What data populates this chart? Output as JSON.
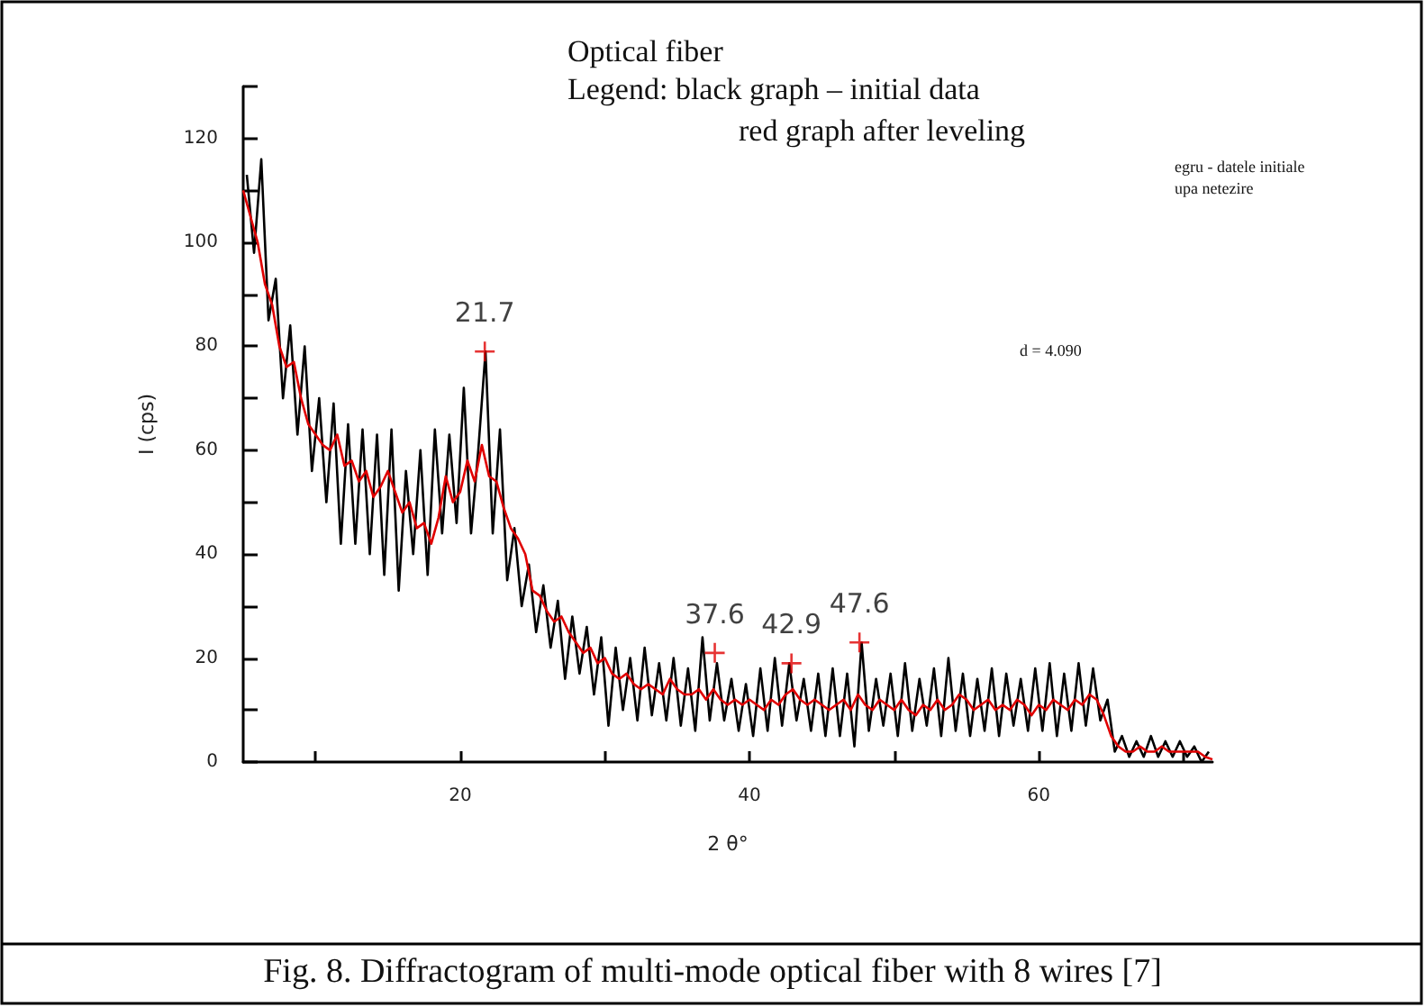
{
  "chart_data": {
    "type": "line",
    "title": "Optical fiber",
    "subtitle": "Legend: black graph – initial data",
    "xlabel": "2 θ°",
    "ylabel": "I (cps)",
    "xlim": [
      5,
      72
    ],
    "xticks": [
      {
        "value": 10,
        "label": null
      },
      20,
      {
        "value": 30,
        "label": null
      },
      40,
      {
        "value": 50,
        "label": null
      },
      60,
      {
        "value": 70,
        "label": null
      }
    ],
    "ylim": [
      0,
      130
    ],
    "yticks": [
      0,
      {
        "value": 10,
        "label": null
      },
      20,
      {
        "value": 30,
        "label": null
      },
      40,
      {
        "value": 50,
        "label": null
      },
      60,
      {
        "value": 70,
        "label": null
      },
      80,
      {
        "value": 90,
        "label": null
      },
      100,
      {
        "value": 110,
        "label": null
      },
      120,
      {
        "value": 130,
        "label": null
      }
    ],
    "grid": false,
    "marker": "none",
    "line_style": "solid",
    "series": [
      {
        "color": "#000000",
        "x": [
          5.25,
          5.75,
          6.25,
          6.75,
          7.25,
          7.75,
          8.25,
          8.75,
          9.25,
          9.75,
          10.25,
          10.75,
          11.25,
          11.75,
          12.25,
          12.75,
          13.25,
          13.75,
          14.25,
          14.75,
          15.25,
          15.75,
          16.25,
          16.75,
          17.25,
          17.75,
          18.25,
          18.75,
          19.25,
          19.75,
          20.25,
          20.75,
          21.25,
          21.75,
          22.25,
          22.75,
          23.25,
          23.75,
          24.25,
          24.75,
          25.25,
          25.75,
          26.25,
          26.75,
          27.25,
          27.75,
          28.25,
          28.75,
          29.25,
          29.75,
          30.25,
          30.75,
          31.25,
          31.75,
          32.25,
          32.75,
          33.25,
          33.75,
          34.25,
          34.75,
          35.25,
          35.75,
          36.25,
          36.75,
          37.25,
          37.75,
          38.25,
          38.75,
          39.25,
          39.75,
          40.25,
          40.75,
          41.25,
          41.75,
          42.25,
          42.75,
          43.25,
          43.75,
          44.25,
          44.75,
          45.25,
          45.75,
          46.25,
          46.75,
          47.25,
          47.75,
          48.25,
          48.75,
          49.25,
          49.75,
          50.25,
          50.75,
          51.25,
          51.75,
          52.25,
          52.75,
          53.25,
          53.75,
          54.25,
          54.75,
          55.25,
          55.75,
          56.25,
          56.75,
          57.25,
          57.75,
          58.25,
          58.75,
          59.25,
          59.75,
          60.25,
          60.75,
          61.25,
          61.75,
          62.25,
          62.75,
          63.25,
          63.75,
          64.25,
          64.75,
          65.25,
          65.75,
          66.25,
          66.75,
          67.25,
          67.75,
          68.25,
          68.75,
          69.25,
          69.75,
          70.25,
          70.75,
          71.25,
          71.75
        ],
        "values": [
          113,
          98,
          116,
          85,
          93,
          70,
          84,
          63,
          80,
          56,
          70,
          50,
          69,
          42,
          65,
          42,
          64,
          40,
          63,
          36,
          64,
          33,
          56,
          40,
          60,
          36,
          64,
          44,
          63,
          46,
          72,
          44,
          60,
          79,
          44,
          64,
          35,
          45,
          30,
          38,
          25,
          34,
          22,
          31,
          16,
          28,
          17,
          26,
          13,
          24,
          7,
          22,
          10,
          20,
          8,
          22,
          9,
          19,
          8,
          20,
          7,
          18,
          6,
          24,
          8,
          19,
          8,
          16,
          6,
          15,
          5,
          18,
          6,
          20,
          7,
          19,
          8,
          16,
          6,
          17,
          5,
          18,
          5,
          17,
          3,
          23,
          6,
          16,
          7,
          17,
          5,
          19,
          6,
          16,
          7,
          18,
          5,
          20,
          6,
          17,
          5,
          16,
          6,
          18,
          5,
          17,
          7,
          16,
          6,
          18,
          6,
          19,
          5,
          17,
          6,
          19,
          7,
          18,
          8,
          12,
          2,
          5,
          1,
          4,
          1,
          5,
          1,
          4,
          1,
          4,
          1,
          3,
          0,
          2
        ]
      },
      {
        "color": "#e00000",
        "x": [
          5,
          5.5,
          6,
          6.5,
          7,
          7.5,
          8,
          8.5,
          9,
          9.5,
          10,
          10.5,
          11,
          11.5,
          12,
          12.5,
          13,
          13.5,
          14,
          14.5,
          15,
          15.5,
          16,
          16.5,
          17,
          17.5,
          18,
          18.5,
          19,
          19.5,
          20,
          20.5,
          21,
          21.5,
          22,
          22.5,
          23,
          23.5,
          24,
          24.5,
          25,
          25.5,
          26,
          26.5,
          27,
          27.5,
          28,
          28.5,
          29,
          29.5,
          30,
          30.5,
          31,
          31.5,
          32,
          32.5,
          33,
          33.5,
          34,
          34.5,
          35,
          35.5,
          36,
          36.5,
          37,
          37.5,
          38,
          38.5,
          39,
          39.5,
          40,
          40.5,
          41,
          41.5,
          42,
          42.5,
          43,
          43.5,
          44,
          44.5,
          45,
          45.5,
          46,
          46.5,
          47,
          47.5,
          48,
          48.5,
          49,
          49.5,
          50,
          50.5,
          51,
          51.5,
          52,
          52.5,
          53,
          53.5,
          54,
          54.5,
          55,
          55.5,
          56,
          56.5,
          57,
          57.5,
          58,
          58.5,
          59,
          59.5,
          60,
          60.5,
          61,
          61.5,
          62,
          62.5,
          63,
          63.5,
          64,
          64.5,
          65,
          65.5,
          66,
          66.5,
          67,
          67.5,
          68,
          68.5,
          69,
          69.5,
          70,
          70.5,
          71,
          71.5,
          72
        ],
        "values": [
          110,
          105,
          100,
          92,
          88,
          80,
          76,
          77,
          70,
          65,
          63,
          61,
          60,
          63,
          57,
          58,
          54,
          56,
          51,
          53,
          56,
          52,
          48,
          50,
          45,
          46,
          42,
          47,
          55,
          50,
          52,
          58,
          54,
          61,
          55,
          54,
          49,
          45,
          43,
          40,
          33,
          32,
          29,
          27,
          28,
          25,
          23,
          21,
          22,
          19,
          20,
          17,
          16,
          17,
          15,
          14,
          15,
          14,
          13,
          16,
          14,
          13,
          13,
          14,
          12,
          14,
          12,
          11,
          12,
          11,
          12,
          11,
          10,
          12,
          11,
          13,
          14,
          12,
          11,
          12,
          11,
          10,
          11,
          12,
          10,
          13,
          11,
          10,
          12,
          11,
          10,
          12,
          10,
          9,
          11,
          10,
          12,
          10,
          11,
          13,
          12,
          10,
          11,
          12,
          10,
          11,
          10,
          12,
          11,
          9,
          11,
          10,
          12,
          11,
          10,
          12,
          11,
          13,
          12,
          9,
          5,
          3,
          2,
          2,
          3,
          2,
          2,
          3,
          2,
          2,
          2,
          2,
          2,
          1,
          0.5
        ]
      }
    ],
    "annotations": [
      {
        "text": "21.7",
        "x": 21.7,
        "y": 79
      },
      {
        "text": "37.6",
        "x": 37.6,
        "y": 21
      },
      {
        "text": "42.9",
        "x": 42.9,
        "y": 19
      },
      {
        "text": "47.6",
        "x": 47.6,
        "y": 23
      },
      "red graph after leveling",
      "d = 4.090",
      "egru - datele initiale",
      "upa netezire",
      "Fig. 8. Diffractogram of multi-mode optical fiber with 8 wires [7]"
    ]
  }
}
